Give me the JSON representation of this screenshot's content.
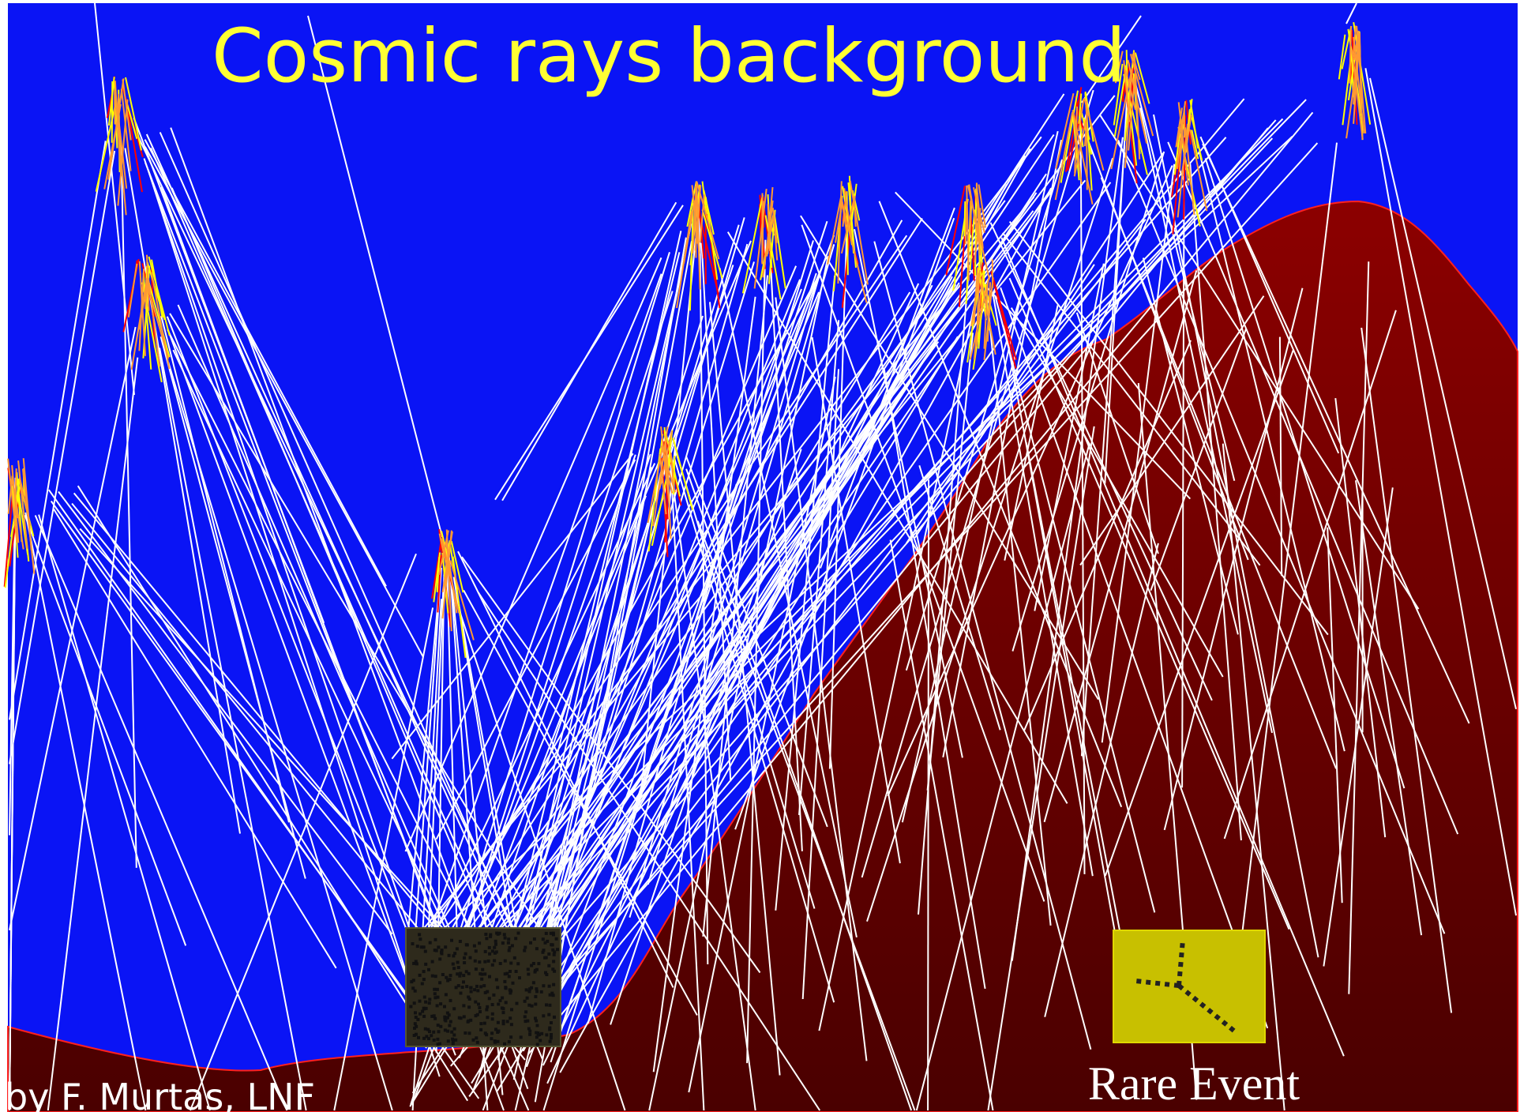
{
  "title": "Cosmic rays background",
  "credit": "by F. Murtas, LNF",
  "rare_event_label": "Rare Event",
  "colors": {
    "sky": "#0a14f5",
    "mountain_top": "#8c0000",
    "mountain_bottom": "#4a0000",
    "title": "#ffff33",
    "ray": "#ffffff",
    "shower_core": "#ff0000",
    "shower_mid": "#ffff00",
    "shower_outer": "#ff9933",
    "detector": "#2e2a1c",
    "rare_event_box": "#c8c000"
  }
}
